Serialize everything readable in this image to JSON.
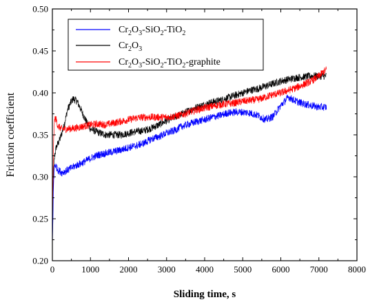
{
  "chart_data": {
    "type": "line",
    "title": "",
    "xlabel": "Sliding time, s",
    "ylabel": "Friction coefficient",
    "xlim": [
      0,
      8000
    ],
    "ylim": [
      0.2,
      0.5
    ],
    "x_ticks": [
      "0",
      "1000",
      "2000",
      "3000",
      "4000",
      "5000",
      "6000",
      "7000",
      "8000"
    ],
    "y_ticks": [
      "0.20",
      "0.25",
      "0.30",
      "0.35",
      "0.40",
      "0.45",
      "0.50"
    ],
    "grid": false,
    "legend_position": "top-left",
    "series": [
      {
        "name": "Cr2O3-SiO2-TiO2",
        "legend_parts": [
          [
            "Cr",
            ""
          ],
          [
            "2",
            "sub"
          ],
          [
            "O",
            ""
          ],
          [
            "3",
            "sub"
          ],
          [
            "-SiO",
            ""
          ],
          [
            "2",
            "sub"
          ],
          [
            "-TiO",
            ""
          ],
          [
            "2",
            "sub"
          ]
        ],
        "color": "#0000ff",
        "x": [
          0,
          30,
          60,
          100,
          150,
          250,
          400,
          600,
          800,
          1000,
          1200,
          1400,
          1600,
          1800,
          2000,
          2200,
          2400,
          2600,
          2800,
          3000,
          3200,
          3400,
          3600,
          3800,
          4000,
          4200,
          4400,
          4600,
          4800,
          5000,
          5200,
          5400,
          5600,
          5800,
          6000,
          6200,
          6400,
          6600,
          6800,
          7000,
          7200
        ],
        "y": [
          0.215,
          0.29,
          0.315,
          0.312,
          0.308,
          0.305,
          0.308,
          0.313,
          0.317,
          0.322,
          0.326,
          0.328,
          0.33,
          0.332,
          0.335,
          0.337,
          0.34,
          0.345,
          0.348,
          0.352,
          0.355,
          0.36,
          0.363,
          0.366,
          0.368,
          0.371,
          0.373,
          0.376,
          0.377,
          0.377,
          0.376,
          0.373,
          0.368,
          0.372,
          0.385,
          0.395,
          0.39,
          0.387,
          0.385,
          0.383,
          0.383
        ]
      },
      {
        "name": "Cr2O3",
        "legend_parts": [
          [
            "Cr",
            ""
          ],
          [
            "2",
            "sub"
          ],
          [
            "O",
            ""
          ],
          [
            "3",
            "sub"
          ]
        ],
        "color": "#000000",
        "x": [
          0,
          30,
          60,
          100,
          200,
          300,
          400,
          500,
          550,
          650,
          750,
          900,
          1000,
          1200,
          1400,
          1600,
          1800,
          2000,
          2200,
          2400,
          2600,
          2800,
          3000,
          3200,
          3400,
          3600,
          3800,
          4000,
          4200,
          4400,
          4600,
          4800,
          5000,
          5200,
          5400,
          5600,
          5800,
          6000,
          6200,
          6400,
          6600,
          6800,
          7000,
          7200
        ],
        "y": [
          0.225,
          0.305,
          0.325,
          0.335,
          0.345,
          0.36,
          0.38,
          0.39,
          0.393,
          0.39,
          0.38,
          0.365,
          0.357,
          0.353,
          0.35,
          0.35,
          0.35,
          0.352,
          0.354,
          0.355,
          0.358,
          0.362,
          0.367,
          0.371,
          0.375,
          0.379,
          0.383,
          0.386,
          0.389,
          0.391,
          0.394,
          0.397,
          0.4,
          0.403,
          0.405,
          0.408,
          0.411,
          0.414,
          0.416,
          0.418,
          0.419,
          0.42,
          0.42,
          0.42
        ]
      },
      {
        "name": "Cr2O3-SiO2-TiO2-graphite",
        "legend_parts": [
          [
            "Cr",
            ""
          ],
          [
            "2",
            "sub"
          ],
          [
            "O",
            ""
          ],
          [
            "3",
            "sub"
          ],
          [
            "-SiO",
            ""
          ],
          [
            "2",
            "sub"
          ],
          [
            "-TiO",
            ""
          ],
          [
            "2",
            "sub"
          ],
          [
            "-graphite",
            ""
          ]
        ],
        "color": "#ff0000",
        "x": [
          0,
          30,
          60,
          100,
          150,
          250,
          400,
          600,
          800,
          1000,
          1200,
          1400,
          1600,
          1800,
          2000,
          2200,
          2400,
          2600,
          2800,
          3000,
          3200,
          3400,
          3600,
          3800,
          4000,
          4200,
          4400,
          4600,
          4800,
          5000,
          5200,
          5400,
          5600,
          5800,
          6000,
          6200,
          6400,
          6600,
          6800,
          7000,
          7200
        ],
        "y": [
          0.24,
          0.34,
          0.37,
          0.368,
          0.36,
          0.357,
          0.357,
          0.358,
          0.36,
          0.362,
          0.363,
          0.362,
          0.364,
          0.366,
          0.368,
          0.37,
          0.371,
          0.371,
          0.371,
          0.371,
          0.372,
          0.374,
          0.377,
          0.38,
          0.382,
          0.384,
          0.386,
          0.387,
          0.388,
          0.39,
          0.391,
          0.392,
          0.395,
          0.398,
          0.4,
          0.403,
          0.406,
          0.41,
          0.414,
          0.42,
          0.428
        ]
      }
    ]
  }
}
